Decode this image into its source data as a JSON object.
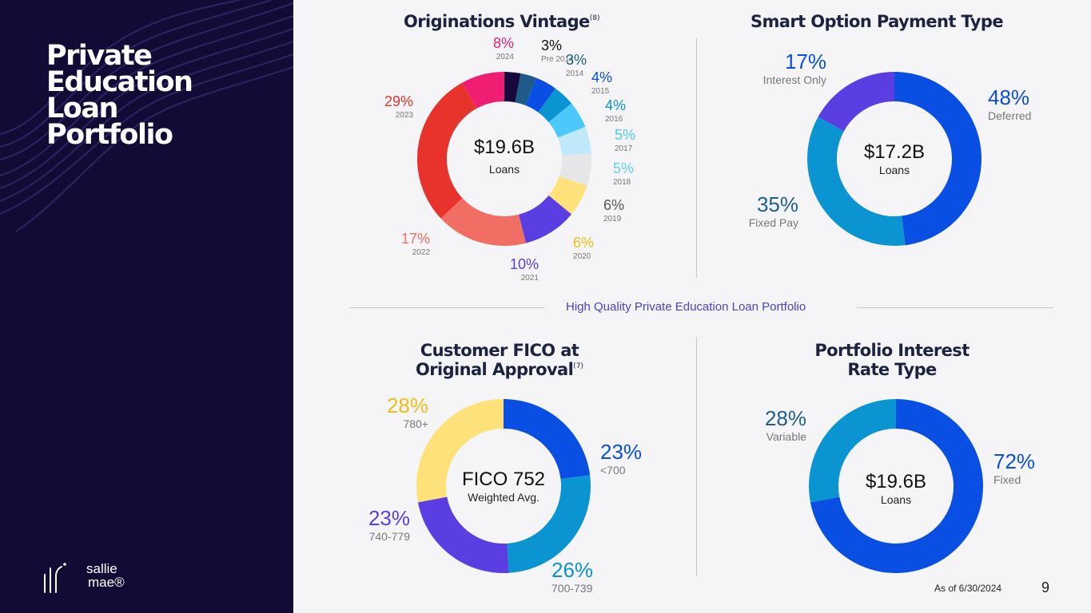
{
  "sidebar": {
    "title": "Private\nEducation\nLoan\nPortfolio",
    "logo_text": "sallie\nmae",
    "logo_mark": "®"
  },
  "banner": "High Quality Private Education Loan Portfolio",
  "footer": {
    "date_note": "As of 6/30/2024",
    "page_number": "9"
  },
  "chart_data": [
    {
      "type": "pie",
      "donut": true,
      "title": "Originations Vintage",
      "title_note": "(8)",
      "center_value": "$19.6B",
      "center_label": "Loans",
      "slices": [
        {
          "label": "Pre 2014",
          "value": 3,
          "display": "3%",
          "color": "#150a3a",
          "label_color": "#111111"
        },
        {
          "label": "2014",
          "value": 3,
          "display": "3%",
          "color": "#1e5a8a",
          "label_color": "#1f5f8e"
        },
        {
          "label": "2015",
          "value": 4,
          "display": "4%",
          "color": "#0a4fe4",
          "label_color": "#0a4fe4"
        },
        {
          "label": "2016",
          "value": 4,
          "display": "4%",
          "color": "#0a95d2",
          "label_color": "#0a95d2"
        },
        {
          "label": "2017",
          "value": 5,
          "display": "5%",
          "color": "#4cc9fa",
          "label_color": "#4cc9fa"
        },
        {
          "label": "2018",
          "value": 5,
          "display": "5%",
          "color": "#bfe9fb",
          "label_color": "#5fd0fa"
        },
        {
          "label": "2019",
          "value": 6,
          "display": "6%",
          "color": "#e6e6e8",
          "label_color": "#555555"
        },
        {
          "label": "2020",
          "value": 6,
          "display": "6%",
          "color": "#ffe17a",
          "label_color": "#f4bd1a"
        },
        {
          "label": "2021",
          "value": 10,
          "display": "10%",
          "color": "#5b3ee2",
          "label_color": "#5b3ee2"
        },
        {
          "label": "2022",
          "value": 17,
          "display": "17%",
          "color": "#f06e64",
          "label_color": "#f06e64"
        },
        {
          "label": "2023",
          "value": 29,
          "display": "29%",
          "color": "#e8322c",
          "label_color": "#e8322c"
        },
        {
          "label": "2024",
          "value": 8,
          "display": "8%",
          "color": "#f01e72",
          "label_color": "#e91e72"
        }
      ]
    },
    {
      "type": "pie",
      "donut": true,
      "title": "Smart Option Payment Type",
      "center_value": "$17.2B",
      "center_label": "Loans",
      "slices": [
        {
          "label": "Deferred",
          "value": 48,
          "display": "48%",
          "color": "#0a4fe4",
          "label_color": "#0a4fe4"
        },
        {
          "label": "Fixed Pay",
          "value": 35,
          "display": "35%",
          "color": "#0a95d2",
          "label_color": "#1f5f8e"
        },
        {
          "label": "Interest Only",
          "value": 17,
          "display": "17%",
          "color": "#5b3ee2",
          "label_color": "#0a4fe4"
        }
      ]
    },
    {
      "type": "pie",
      "donut": true,
      "title": "Customer FICO at\nOriginal Approval",
      "title_note": "(7)",
      "center_value": "FICO 752",
      "center_label": "Weighted Avg.",
      "slices": [
        {
          "label": "<700",
          "value": 23,
          "display": "23%",
          "color": "#0a4fe4",
          "label_color": "#0a4fe4"
        },
        {
          "label": "700-739",
          "value": 26,
          "display": "26%",
          "color": "#0a95d2",
          "label_color": "#0a95d2"
        },
        {
          "label": "740-779",
          "value": 23,
          "display": "23%",
          "color": "#5b3ee2",
          "label_color": "#5b3ee2"
        },
        {
          "label": "780+",
          "value": 28,
          "display": "28%",
          "color": "#ffe17a",
          "label_color": "#f4bd1a"
        }
      ]
    },
    {
      "type": "pie",
      "donut": true,
      "title": "Portfolio Interest\nRate Type",
      "center_value": "$19.6B",
      "center_label": "Loans",
      "slices": [
        {
          "label": "Fixed",
          "value": 72,
          "display": "72%",
          "color": "#0a4fe4",
          "label_color": "#0a4fe4"
        },
        {
          "label": "Variable",
          "value": 28,
          "display": "28%",
          "color": "#0a95d2",
          "label_color": "#1f5f8e"
        }
      ]
    }
  ]
}
